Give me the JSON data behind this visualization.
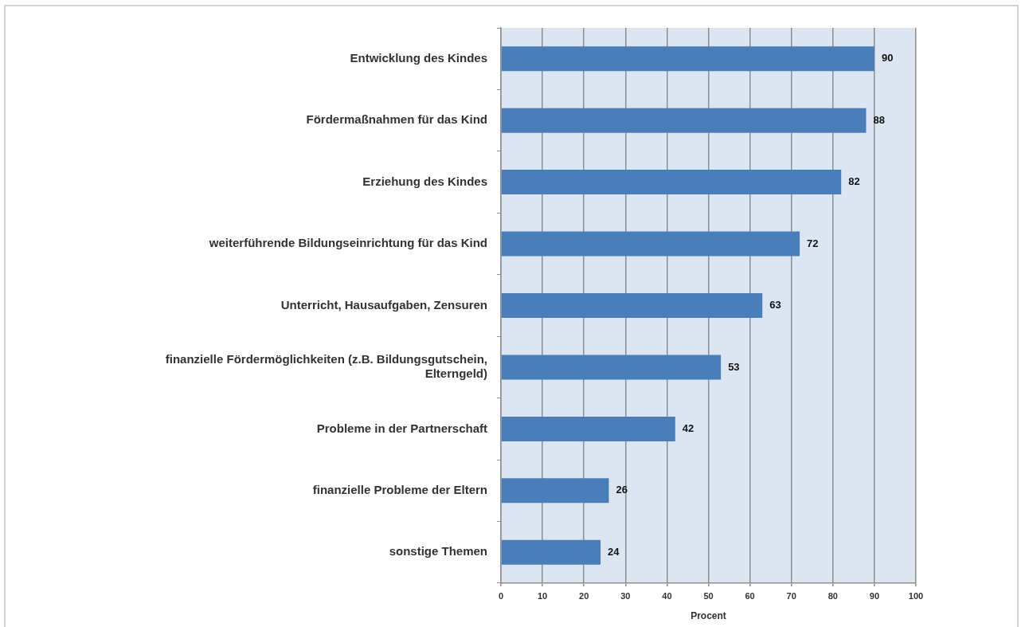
{
  "chart_data": {
    "type": "bar",
    "orientation": "horizontal",
    "categories": [
      "Entwicklung des Kindes",
      "Fördermaßnahmen für das Kind",
      "Erziehung des Kindes",
      "weiterführende Bildungseinrichtung für das Kind",
      "Unterricht, Hausaufgaben, Zensuren",
      "finanzielle Fördermöglichkeiten (z.B. Bildungsgutschein, Elterngeld)",
      "Probleme in der Partnerschaft",
      "finanzielle Probleme der Eltern",
      "sonstige Themen"
    ],
    "values": [
      90,
      88,
      82,
      72,
      63,
      53,
      42,
      26,
      24
    ],
    "color": "#4a7ebb",
    "xlabel": "Procent",
    "xlim": [
      0,
      100
    ],
    "xticks": [
      0,
      10,
      20,
      30,
      40,
      50,
      60,
      70,
      80,
      90,
      100
    ],
    "grid": "x",
    "data_labels": true
  }
}
